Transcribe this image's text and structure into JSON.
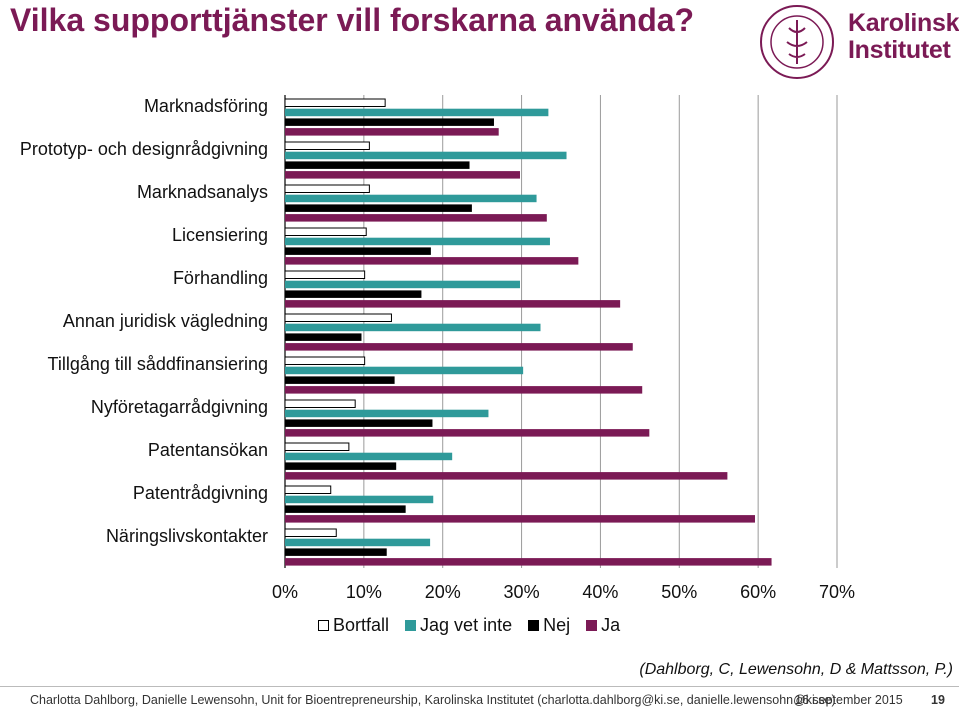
{
  "title": "Vilka supporttjänster vill forskarna använda?",
  "logo": {
    "line1": "Karolinska",
    "line2": "Institutet",
    "seal_text": "KAROLINSKA INSTITUTET · ANNO 1810"
  },
  "colors": {
    "ja": "#7b1a55",
    "nej": "#000000",
    "jag_vet_inte": "#2f9a9a",
    "bortfall": "#ffffff",
    "title": "#7b1a55"
  },
  "chart_data": {
    "type": "bar",
    "orientation": "horizontal",
    "categories": [
      "Marknadsföring",
      "Prototyp- och designrådgivning",
      "Marknadsanalys",
      "Licensiering",
      "Förhandling",
      "Annan juridisk vägledning",
      "Tillgång till såddfinansiering",
      "Nyföretagarrådgivning",
      "Patentansökan",
      "Patentrådgivning",
      "Näringslivskontakter"
    ],
    "series": [
      {
        "name": "Bortfall",
        "values": [
          12.7,
          10.7,
          10.7,
          10.3,
          10.1,
          13.5,
          10.1,
          8.9,
          8.1,
          5.8,
          6.5
        ]
      },
      {
        "name": "Jag vet inte",
        "values": [
          33.4,
          35.7,
          31.9,
          33.6,
          29.8,
          32.4,
          30.2,
          25.8,
          21.2,
          18.8,
          18.4
        ]
      },
      {
        "name": "Nej",
        "values": [
          26.5,
          23.4,
          23.7,
          18.5,
          17.3,
          9.7,
          13.9,
          18.7,
          14.1,
          15.3,
          12.9
        ]
      },
      {
        "name": "Ja",
        "values": [
          27.1,
          29.8,
          33.2,
          37.2,
          42.5,
          44.1,
          45.3,
          46.2,
          56.1,
          59.6,
          61.7
        ]
      }
    ],
    "xlim": [
      0,
      70
    ],
    "xticks": [
      "0%",
      "10%",
      "20%",
      "30%",
      "40%",
      "50%",
      "60%",
      "70%"
    ],
    "grid": "vertical",
    "legend_position": "bottom"
  },
  "citation": "(Dahlborg, C, Lewensohn, D & Mattsson, P.)",
  "footer": {
    "authors": "Charlotta Dahlborg, Danielle Lewensohn, Unit for Bioentrepreneurship, Karolinska Institutet (charlotta.dahlborg@ki.se, danielle.lewensohn@ki.se)",
    "date": "16 september 2015",
    "page": "19"
  }
}
